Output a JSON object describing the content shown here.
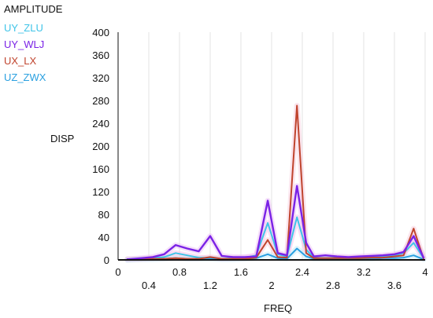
{
  "chart_data": {
    "type": "line",
    "title": "AMPLITUDE",
    "xlabel": "FREQ",
    "ylabel": "DISP",
    "xlim": [
      0,
      4
    ],
    "ylim": [
      0,
      400
    ],
    "x_ticks_bottom": [
      "0",
      "0.8",
      "1.6",
      "2.4",
      "3.2",
      "4"
    ],
    "x_ticks_low": [
      "0.4",
      "1.2",
      "2",
      "2.8",
      "3.6"
    ],
    "y_ticks": [
      "0",
      "40",
      "80",
      "120",
      "160",
      "200",
      "240",
      "280",
      "320",
      "360",
      "400"
    ],
    "grid": "vertical",
    "legend_placement": "left",
    "series": [
      {
        "name": "UY_ZLU",
        "color": "#3fc4e8",
        "x": [
          0.12,
          0.3,
          0.45,
          0.6,
          0.75,
          0.9,
          1.05,
          1.2,
          1.35,
          1.5,
          1.65,
          1.8,
          1.95,
          2.08,
          2.2,
          2.33,
          2.45,
          2.55,
          2.7,
          2.85,
          3.0,
          3.15,
          3.3,
          3.45,
          3.6,
          3.72,
          3.85,
          3.98
        ],
        "y": [
          1,
          2,
          3,
          5,
          12,
          8,
          4,
          3,
          2,
          3,
          4,
          8,
          65,
          10,
          6,
          75,
          18,
          4,
          3,
          4,
          3,
          4,
          5,
          6,
          8,
          12,
          30,
          3
        ]
      },
      {
        "name": "UY_WLJ",
        "color": "#7a22e6",
        "x": [
          0.12,
          0.3,
          0.45,
          0.6,
          0.75,
          0.9,
          1.05,
          1.2,
          1.35,
          1.5,
          1.65,
          1.8,
          1.95,
          2.08,
          2.2,
          2.33,
          2.45,
          2.55,
          2.7,
          2.85,
          3.0,
          3.15,
          3.3,
          3.45,
          3.6,
          3.72,
          3.85,
          3.98
        ],
        "y": [
          1,
          3,
          5,
          10,
          26,
          20,
          15,
          42,
          7,
          5,
          5,
          6,
          104,
          12,
          8,
          130,
          30,
          6,
          8,
          6,
          5,
          6,
          7,
          8,
          10,
          14,
          42,
          4
        ]
      },
      {
        "name": "UX_LX",
        "color": "#c0442e",
        "x": [
          0.12,
          0.3,
          0.45,
          0.6,
          0.75,
          0.9,
          1.05,
          1.2,
          1.35,
          1.5,
          1.65,
          1.8,
          1.95,
          2.08,
          2.2,
          2.33,
          2.45,
          2.55,
          2.7,
          2.85,
          3.0,
          3.15,
          3.3,
          3.45,
          3.6,
          3.72,
          3.85,
          3.98
        ],
        "y": [
          1,
          1,
          2,
          2,
          3,
          2,
          2,
          5,
          2,
          2,
          2,
          4,
          35,
          5,
          4,
          271,
          12,
          3,
          3,
          3,
          3,
          3,
          4,
          4,
          6,
          8,
          55,
          2
        ]
      },
      {
        "name": "UZ_ZWX",
        "color": "#2aa0e0",
        "x": [
          0.12,
          0.3,
          0.45,
          0.6,
          0.75,
          0.9,
          1.05,
          1.2,
          1.35,
          1.5,
          1.65,
          1.8,
          1.95,
          2.08,
          2.2,
          2.33,
          2.45,
          2.55,
          2.7,
          2.85,
          3.0,
          3.15,
          3.3,
          3.45,
          3.6,
          3.72,
          3.85,
          3.98
        ],
        "y": [
          0,
          1,
          1,
          2,
          3,
          2,
          2,
          2,
          1,
          1,
          2,
          3,
          10,
          3,
          2,
          20,
          6,
          2,
          2,
          2,
          2,
          2,
          2,
          3,
          3,
          4,
          8,
          1
        ]
      }
    ]
  }
}
